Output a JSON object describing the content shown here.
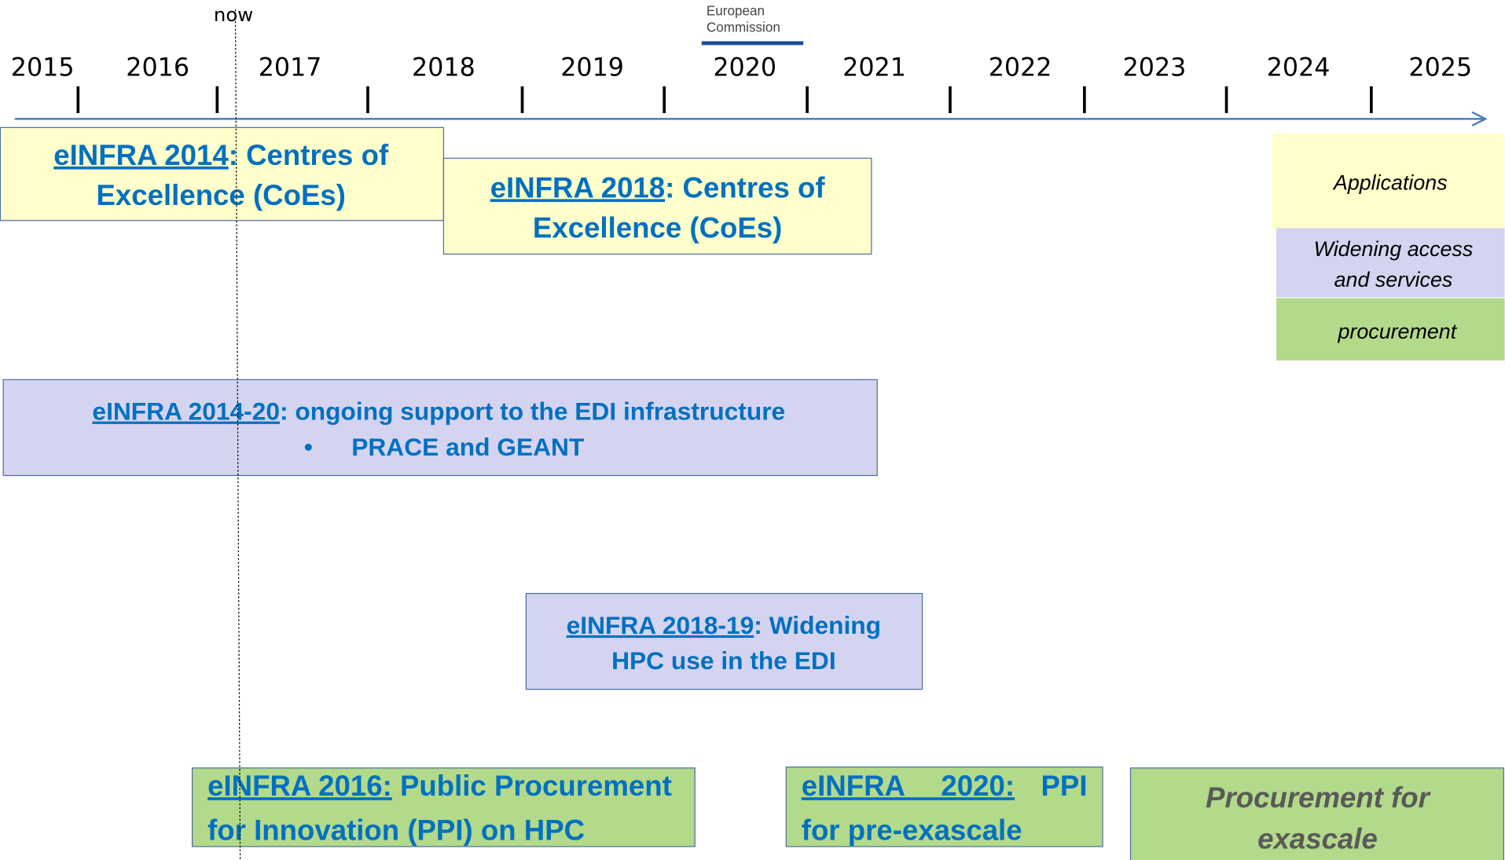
{
  "header": {
    "now": "now",
    "logo": [
      "European",
      "Commission"
    ]
  },
  "years": [
    "2015",
    "2016",
    "2017",
    "2018",
    "2019",
    "2020",
    "2021",
    "2022",
    "2023",
    "2024",
    "2025"
  ],
  "boxes": [
    {
      "link": "eINFRA 2014",
      "lines": [
        ": Centres of",
        "Excellence (CoEs)"
      ]
    },
    {
      "link": "eINFRA 2018",
      "lines": [
        ": Centres of",
        "Excellence (CoEs)"
      ]
    },
    {
      "link": "eINFRA 2014-20",
      "lines": [
        ": ongoing support to the EDI infrastructure",
        "PRACE and GEANT"
      ],
      "bullet": "•"
    },
    {
      "link": "eINFRA 2018-19",
      "lines": [
        ": Widening",
        "HPC use in the EDI"
      ]
    },
    {
      "link": "eINFRA 2016:",
      "lines": [
        " Public Procurement",
        "for Innovation (PPI) on HPC"
      ]
    },
    {
      "link": "eINFRA 2020:",
      "lines": [
        "PPI",
        "for pre-exascale"
      ]
    },
    {
      "lines": [
        "Procurement for",
        "exascale"
      ]
    }
  ],
  "legend": [
    [
      "Applications"
    ],
    [
      "Widening access",
      "and services"
    ],
    [
      "procurement"
    ]
  ]
}
